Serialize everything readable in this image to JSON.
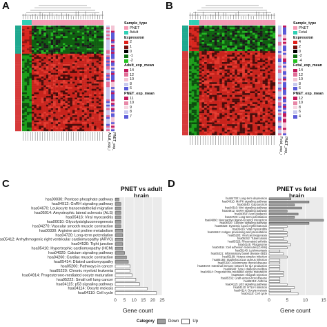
{
  "panels": {
    "a": {
      "letter": "A",
      "legend": {
        "sample_type": {
          "title": "Sample_type",
          "items": [
            {
              "label": "PNET",
              "color": "#f49ab4"
            },
            {
              "label": "Adult",
              "color": "#2fd0b5"
            }
          ]
        },
        "expression": {
          "title": "Expression",
          "items": [
            {
              "label": "2",
              "color": "#e0201b"
            },
            {
              "label": "1",
              "color": "#7a1310"
            },
            {
              "label": "0",
              "color": "#000000"
            },
            {
              "label": "-1",
              "color": "#0f6b10"
            },
            {
              "label": "-2",
              "color": "#22c21f"
            }
          ]
        },
        "exp_mean": {
          "title": "Adult_exp_mean",
          "items": [
            {
              "label": "14",
              "color": "#c2185b"
            },
            {
              "label": "12",
              "color": "#e26d98"
            },
            {
              "label": "10",
              "color": "#f3c4d4"
            },
            {
              "label": "8",
              "color": "#c9c9ee"
            },
            {
              "label": "6",
              "color": "#5a5ad8"
            }
          ]
        },
        "pnet_mean": {
          "title": "PNET_exp_mean",
          "items": [
            {
              "label": "11",
              "color": "#c2185b"
            },
            {
              "label": "10",
              "color": "#e887a8"
            },
            {
              "label": "9",
              "color": "#f6d6e1"
            },
            {
              "label": "8",
              "color": "#c9c9ee"
            },
            {
              "label": "7",
              "color": "#5a5ad8"
            }
          ]
        },
        "col_labels": [
          "Adult_exp_mean",
          "PNET_exp_mean"
        ]
      }
    },
    "b": {
      "letter": "B",
      "legend": {
        "sample_type": {
          "title": "Sample_type",
          "items": [
            {
              "label": "PNET",
              "color": "#f49ab4"
            },
            {
              "label": "Fetal",
              "color": "#2fd0b5"
            }
          ]
        },
        "expression": {
          "title": "Expression",
          "items": [
            {
              "label": "4",
              "color": "#e0201b"
            },
            {
              "label": "2",
              "color": "#7a1310"
            },
            {
              "label": "0",
              "color": "#000000"
            },
            {
              "label": "-2",
              "color": "#0f6b10"
            },
            {
              "label": "-4",
              "color": "#22c21f"
            }
          ]
        },
        "exp_mean": {
          "title": "Fetal_exp_mean",
          "items": [
            {
              "label": "14",
              "color": "#c2185b"
            },
            {
              "label": "12",
              "color": "#e26d98"
            },
            {
              "label": "10",
              "color": "#f3c4d4"
            },
            {
              "label": "8",
              "color": "#c9c9ee"
            },
            {
              "label": "6",
              "color": "#5a5ad8"
            }
          ]
        },
        "pnet_mean": {
          "title": "PNET_exp_mean",
          "items": [
            {
              "label": "12",
              "color": "#c2185b"
            },
            {
              "label": "10",
              "color": "#e887a8"
            },
            {
              "label": "8",
              "color": "#f6d6e1"
            },
            {
              "label": "6",
              "color": "#c9c9ee"
            },
            {
              "label": "4",
              "color": "#5a5ad8"
            }
          ]
        },
        "col_labels": [
          "Fetal_exp_mean",
          "PNET_exp_mean"
        ]
      }
    },
    "c": {
      "letter": "C"
    },
    "d": {
      "letter": "D"
    }
  },
  "category_legend": {
    "title": "Category",
    "items": [
      {
        "label": "Down",
        "color": "#9e9e9e"
      },
      {
        "label": "Up",
        "color": "#ffffff"
      }
    ]
  },
  "chart_data": [
    {
      "type": "bar",
      "orientation": "horizontal",
      "title": "PNET vs adult brain",
      "xlabel": "Gene count",
      "ylabel": "",
      "xlim": [
        0,
        25
      ],
      "xticks": [
        0,
        5,
        10,
        15,
        20,
        25
      ],
      "grid": true,
      "categories": [
        "hsa00030: Pentose phosphate pathway",
        "hsa04912: GnRH signaling pathway",
        "hsa04670: Leukocyte transendothelial migration",
        "hsa05014: Amyotrophic lateral sclerosis (ALS)",
        "hsa05416: Viral myocarditis",
        "hsa00010: Glycolysis/gluconeogenesis",
        "hsa04270: Vascular smooth muscle contraction",
        "hsa00330: Arginine and proline metabolism",
        "hsa04720: Long-term potentiation",
        "hsa05412: Arrhythmogenic right ventricular cardiomyopathy (ARVC)",
        "hsa04530: Tight junction",
        "hsa05410: Hypertrophic cardiomyopathy (HCM)",
        "hsa04020: Calcium signaling pathway",
        "hsa04260: Cardiac muscle contraction",
        "hsa05414: Dilated cardiomyopathy",
        "hsa05200: Pathways in cancer",
        "hsa05220: Chronic myeloid leukemia",
        "hsa04914: Progesterone-mediated oocyte maturation",
        "hsa05222: Small cell lung cancer",
        "hsa04115: p53 signaling pathway",
        "hsa04114: Oocyte meiosis",
        "hsa04110: Cell cycle"
      ],
      "values": [
        2,
        3,
        3,
        3,
        3,
        3,
        3,
        4,
        4,
        4,
        4,
        4,
        5,
        6,
        7,
        8,
        8,
        9,
        11,
        13,
        17,
        22
      ],
      "category": [
        "Down",
        "Down",
        "Down",
        "Down",
        "Down",
        "Down",
        "Down",
        "Down",
        "Down",
        "Down",
        "Down",
        "Down",
        "Down",
        "Down",
        "Down",
        "Up",
        "Up",
        "Up",
        "Up",
        "Up",
        "Up",
        "Up"
      ]
    },
    {
      "type": "bar",
      "orientation": "horizontal",
      "title": "PNET vs fetal brain",
      "xlabel": "Gene count",
      "ylabel": "",
      "xlim": [
        0,
        15
      ],
      "xticks": [
        0,
        5,
        10,
        15
      ],
      "grid": true,
      "categories": [
        "hsa04730: Long-term depression",
        "hsa04010: MAPK signaling pathway",
        "hsa04540: Gap junction",
        "hsa04310: Wnt signaling pathway",
        "hsa04912: GnRH signaling pathway",
        "hsa04360: Axon guidance",
        "hsa04720: Long-term potentiation",
        "hsa04080: Neuroactive ligand-receptor interaction",
        "hsa04020: Calcium signaling pathway",
        "hsa05322: Systemic lupus erythematosus",
        "hsa05416: Viral myocarditis",
        "hsa04612: Antigen processing and presentation",
        "hsa05203: Viral carcinogenesis",
        "hsa05152: Tuberculosis",
        "hsa05323: Rheumatoid arthritis",
        "hsa04145: Phagosome",
        "hsa04514: Cell adhesion molecules (CAMs)",
        "hsa05140: Leishmaniasis",
        "hsa05321: Inflammatory bowel disease (IBD)",
        "hsa05168: Herpes simplex infection",
        "hsa05150: Staphylococcus aureus infection",
        "hsa05320: Autoimmune thyroid disease",
        "hsa04672: Intestinal immune network for IgA production",
        "hsa04940: Type I diabetes mellitus",
        "hsa04914: Progesterone-mediated oocyte maturation",
        "hsa05310: Allograft rejection",
        "hsa05332: Graft-versus-host disease",
        "hsa05310: Asthma",
        "hsa04115: p53 signaling pathway",
        "hsa04110: HTLV-I infection",
        "hsa04114: Oocyte meiosis",
        "hsa04110: Cell cycle"
      ],
      "values": [
        6,
        11,
        7,
        9,
        5,
        8,
        7,
        15,
        11,
        5,
        4,
        5,
        5,
        4,
        5,
        6,
        5,
        3,
        4,
        5,
        3,
        3,
        3,
        3,
        4,
        4,
        3,
        3,
        5,
        7,
        6,
        8
      ],
      "category": [
        "Down",
        "Down",
        "Down",
        "Down",
        "Down",
        "Down",
        "Down",
        "Down",
        "Down",
        "Up",
        "Up",
        "Up",
        "Up",
        "Up",
        "Up",
        "Up",
        "Up",
        "Up",
        "Up",
        "Up",
        "Up",
        "Up",
        "Up",
        "Up",
        "Up",
        "Up",
        "Up",
        "Up",
        "Up",
        "Up",
        "Up",
        "Up"
      ]
    }
  ]
}
